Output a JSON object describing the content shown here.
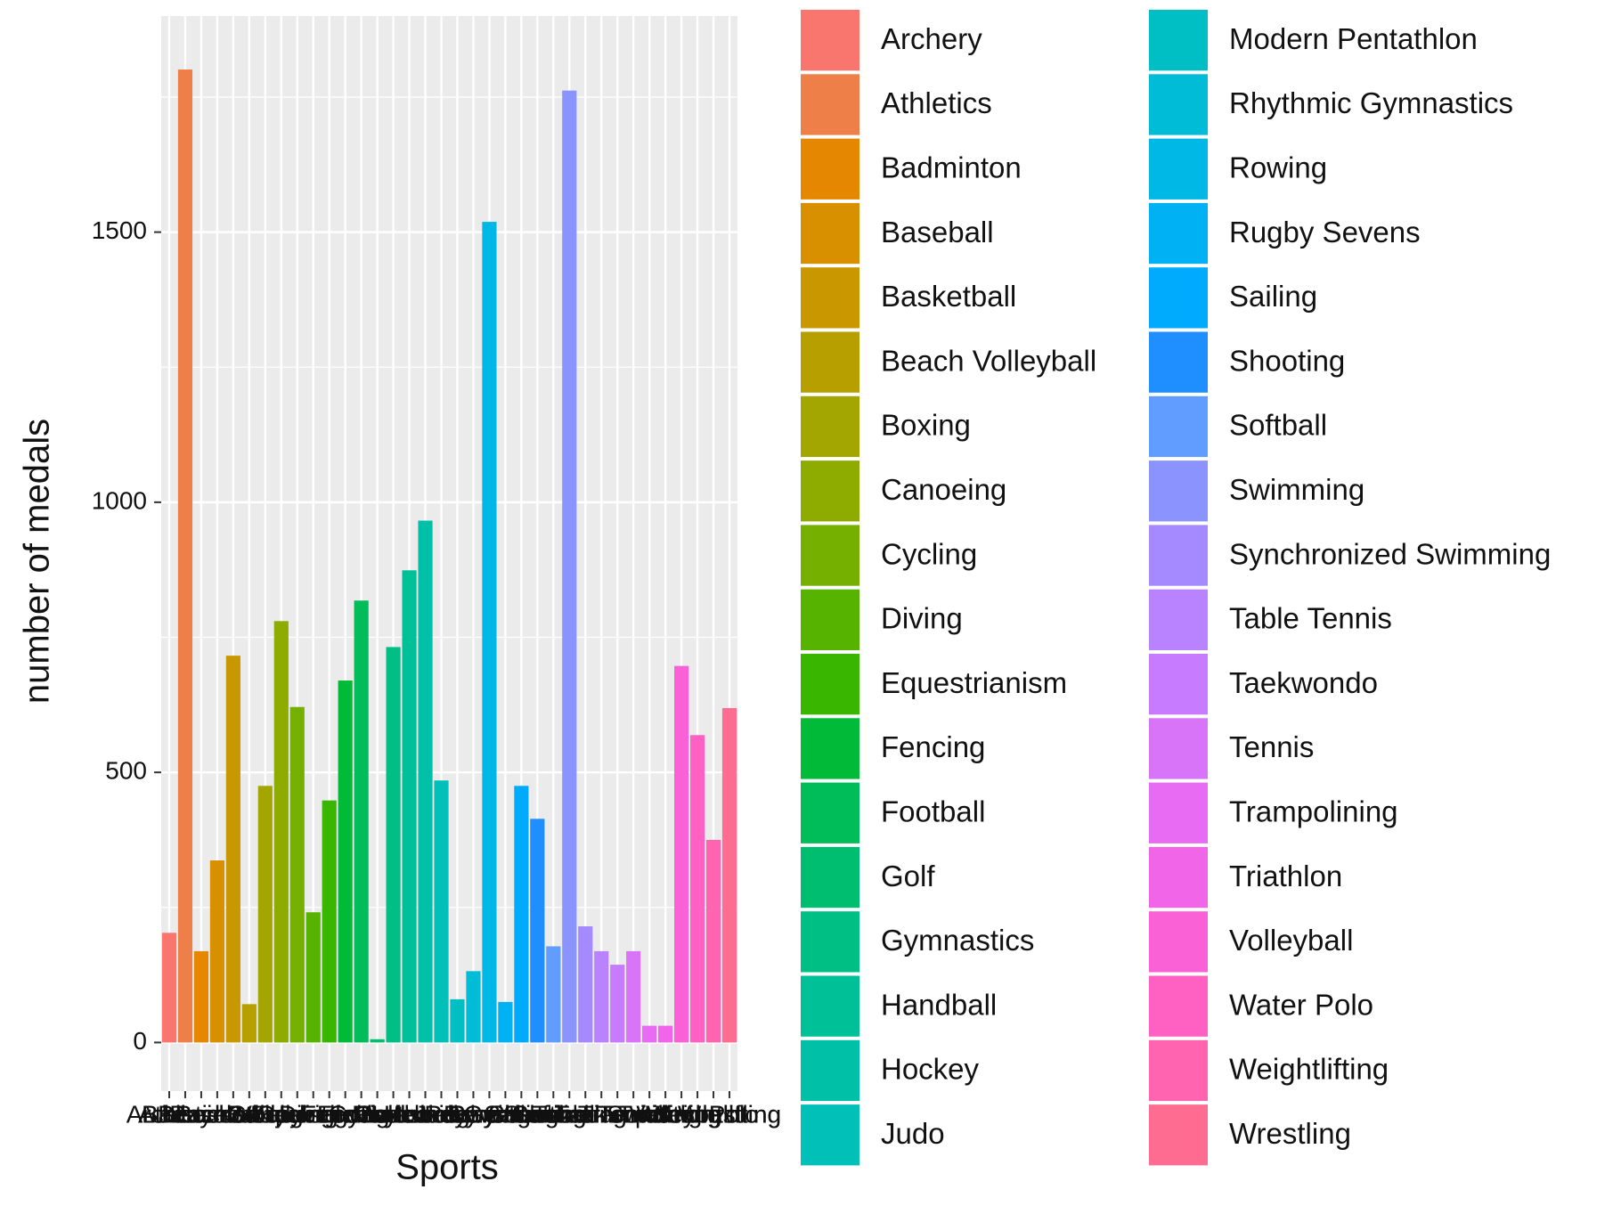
{
  "chart_data": {
    "type": "bar",
    "x_label": "Sports",
    "y_label": "number of medals",
    "categories": [
      "Archery",
      "Athletics",
      "Badminton",
      "Baseball",
      "Basketball",
      "Beach Volleyball",
      "Boxing",
      "Canoeing",
      "Cycling",
      "Diving",
      "Equestrianism",
      "Fencing",
      "Football",
      "Golf",
      "Gymnastics",
      "Handball",
      "Hockey",
      "Judo",
      "Modern Pentathlon",
      "Rhythmic Gymnastics",
      "Rowing",
      "Rugby Sevens",
      "Sailing",
      "Shooting",
      "Softball",
      "Swimming",
      "Synchronized Swimming",
      "Table Tennis",
      "Taekwondo",
      "Tennis",
      "Trampolining",
      "Triathlon",
      "Volleyball",
      "Water Polo",
      "Weightlifting",
      "Wrestling"
    ],
    "values": [
      203,
      1801,
      169,
      337,
      716,
      71,
      475,
      780,
      621,
      241,
      448,
      670,
      818,
      6,
      732,
      874,
      966,
      485,
      80,
      132,
      1519,
      75,
      475,
      414,
      178,
      1762,
      215,
      169,
      144,
      169,
      31,
      31,
      697,
      569,
      375,
      619
    ],
    "colors": [
      "#F8766D",
      "#EF7F49",
      "#E58700",
      "#D89000",
      "#C99800",
      "#B79F00",
      "#A3A500",
      "#8EAB00",
      "#75AF00",
      "#56B400",
      "#39B600",
      "#00BA38",
      "#00BC59",
      "#00BE70",
      "#00BF85",
      "#00C097",
      "#00C1A8",
      "#00C0B8",
      "#00BFC4",
      "#00BCD6",
      "#00B8E5",
      "#00B2F3",
      "#00ABFD",
      "#1F8EFF",
      "#619CFF",
      "#8B93FF",
      "#A58AFF",
      "#B983FF",
      "#C77CFF",
      "#D774F8",
      "#E76BF3",
      "#F166E9",
      "#FB61D7",
      "#FF61C3",
      "#FF64B0",
      "#FF6C91"
    ],
    "ylim": [
      -90,
      1900
    ],
    "yticks": [
      0,
      500,
      1000,
      1500
    ],
    "grid": true,
    "legend": "right"
  }
}
